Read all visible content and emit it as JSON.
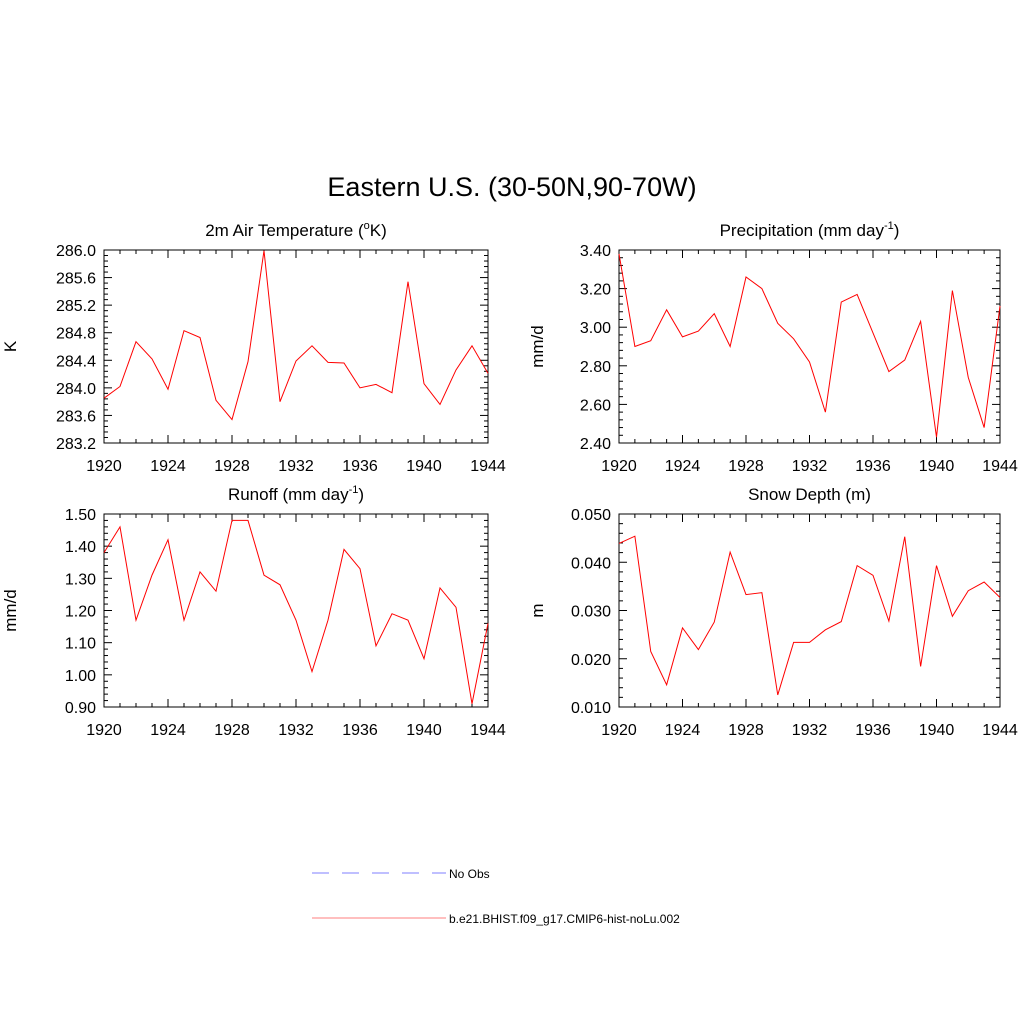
{
  "title": "Eastern U.S. (30-50N,90-70W)",
  "colors": {
    "model": "#ff0000",
    "obs": "#9999ff",
    "axis": "#000000"
  },
  "legend": [
    {
      "label": "No Obs",
      "style": "dashed",
      "color": "#9999ff"
    },
    {
      "label": "b.e21.BHIST.f09_g17.CMIP6-hist-noLu.002",
      "style": "solid",
      "color": "#ff9999"
    }
  ],
  "chart_data": [
    {
      "type": "line",
      "title_main": "2m Air Temperature (",
      "title_sup": "o",
      "title_tail": "K)",
      "ylabel": "K",
      "xlim": [
        1920,
        1944
      ],
      "ylim": [
        283.2,
        286.0
      ],
      "xticks": [
        "1920",
        "1924",
        "1928",
        "1932",
        "1936",
        "1940",
        "1944"
      ],
      "yticks": [
        "283.2",
        "283.6",
        "284.0",
        "284.4",
        "284.8",
        "285.2",
        "285.6",
        "286.0"
      ],
      "x": [
        1920,
        1921,
        1922,
        1923,
        1924,
        1925,
        1926,
        1927,
        1928,
        1929,
        1930,
        1931,
        1932,
        1933,
        1934,
        1935,
        1936,
        1937,
        1938,
        1939,
        1940,
        1941,
        1942,
        1943,
        1944
      ],
      "series": [
        {
          "values": [
            283.85,
            284.02,
            284.67,
            284.42,
            283.98,
            284.83,
            284.73,
            283.82,
            283.54,
            284.38,
            285.99,
            283.8,
            284.39,
            284.61,
            284.37,
            284.36,
            284.0,
            284.05,
            283.93,
            285.54,
            284.06,
            283.76,
            284.26,
            284.61,
            284.21
          ]
        }
      ]
    },
    {
      "type": "line",
      "title_main": "Precipitation (mm day",
      "title_sup": "-1",
      "title_tail": ")",
      "ylabel": "mm/d",
      "xlim": [
        1920,
        1944
      ],
      "ylim": [
        2.4,
        3.4
      ],
      "xticks": [
        "1920",
        "1924",
        "1928",
        "1932",
        "1936",
        "1940",
        "1944"
      ],
      "yticks": [
        "2.40",
        "2.60",
        "2.80",
        "3.00",
        "3.20",
        "3.40"
      ],
      "x": [
        1920,
        1921,
        1922,
        1923,
        1924,
        1925,
        1926,
        1927,
        1928,
        1929,
        1930,
        1931,
        1932,
        1933,
        1934,
        1935,
        1936,
        1937,
        1938,
        1939,
        1940,
        1941,
        1942,
        1943,
        1944
      ],
      "series": [
        {
          "values": [
            3.38,
            2.9,
            2.93,
            3.09,
            2.95,
            2.98,
            3.07,
            2.9,
            3.26,
            3.2,
            3.02,
            2.94,
            2.82,
            2.56,
            3.13,
            3.17,
            2.97,
            2.77,
            2.83,
            3.03,
            2.43,
            3.19,
            2.74,
            2.48,
            3.11
          ]
        }
      ]
    },
    {
      "type": "line",
      "title_main": "Runoff (mm day",
      "title_sup": "-1",
      "title_tail": ")",
      "ylabel": "mm/d",
      "xlim": [
        1920,
        1944
      ],
      "ylim": [
        0.9,
        1.5
      ],
      "xticks": [
        "1920",
        "1924",
        "1928",
        "1932",
        "1936",
        "1940",
        "1944"
      ],
      "yticks": [
        "0.90",
        "1.00",
        "1.10",
        "1.20",
        "1.30",
        "1.40",
        "1.50"
      ],
      "x": [
        1920,
        1921,
        1922,
        1923,
        1924,
        1925,
        1926,
        1927,
        1928,
        1929,
        1930,
        1931,
        1932,
        1933,
        1934,
        1935,
        1936,
        1937,
        1938,
        1939,
        1940,
        1941,
        1942,
        1943,
        1944
      ],
      "series": [
        {
          "values": [
            1.38,
            1.46,
            1.17,
            1.31,
            1.42,
            1.17,
            1.32,
            1.26,
            1.48,
            1.48,
            1.31,
            1.28,
            1.17,
            1.01,
            1.17,
            1.39,
            1.33,
            1.09,
            1.19,
            1.17,
            1.05,
            1.27,
            1.21,
            0.91,
            1.16
          ]
        }
      ]
    },
    {
      "type": "line",
      "title_main": "Snow Depth (m)",
      "title_sup": "",
      "title_tail": "",
      "ylabel": "m",
      "xlim": [
        1920,
        1944
      ],
      "ylim": [
        0.01,
        0.05
      ],
      "xticks": [
        "1920",
        "1924",
        "1928",
        "1932",
        "1936",
        "1940",
        "1944"
      ],
      "yticks": [
        "0.010",
        "0.020",
        "0.030",
        "0.040",
        "0.050"
      ],
      "x": [
        1920,
        1921,
        1922,
        1923,
        1924,
        1925,
        1926,
        1927,
        1928,
        1929,
        1930,
        1931,
        1932,
        1933,
        1934,
        1935,
        1936,
        1937,
        1938,
        1939,
        1940,
        1941,
        1942,
        1943,
        1944
      ],
      "series": [
        {
          "values": [
            0.0439,
            0.0454,
            0.0215,
            0.0146,
            0.0264,
            0.0219,
            0.0276,
            0.0421,
            0.0333,
            0.0337,
            0.0125,
            0.0234,
            0.0234,
            0.026,
            0.0277,
            0.0393,
            0.0373,
            0.0278,
            0.0453,
            0.0184,
            0.0393,
            0.0288,
            0.0341,
            0.0359,
            0.0327
          ]
        }
      ]
    }
  ]
}
